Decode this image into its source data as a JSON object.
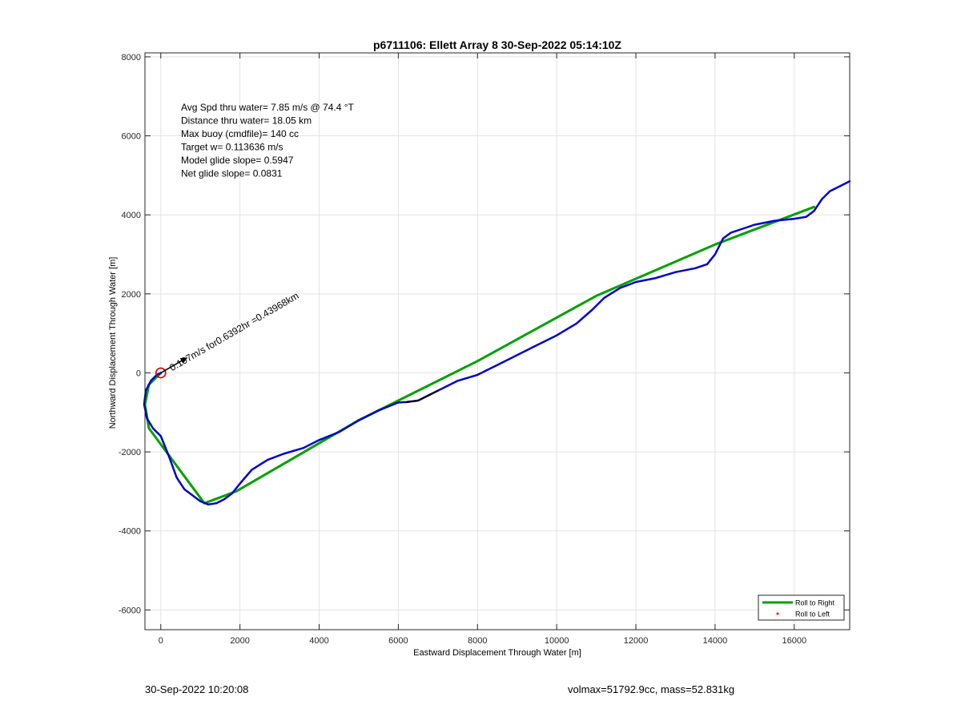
{
  "footer": {
    "timestamp": "30-Sep-2022 10:20:08",
    "volmass": "volmax=51792.9cc, mass=52.831kg"
  },
  "chart_data": {
    "type": "line",
    "title": "p6711106: Ellett Array 8 30-Sep-2022 05:14:10Z",
    "xlabel": "Eastward Displacement Through Water [m]",
    "ylabel": "Northward Displacement Through Water [m]",
    "xlim": [
      -400,
      17400
    ],
    "ylim": [
      -6500,
      8100
    ],
    "xticks": [
      0,
      2000,
      4000,
      6000,
      8000,
      10000,
      12000,
      14000,
      16000
    ],
    "xtick_labels": [
      "0",
      "2000",
      "4000",
      "6000",
      "8000",
      "10000",
      "12000",
      "14000",
      "16000"
    ],
    "yticks": [
      -6000,
      -4000,
      -2000,
      0,
      2000,
      4000,
      6000,
      8000
    ],
    "ytick_labels": [
      "-6000",
      "-4000",
      "-2000",
      "0",
      "2000",
      "4000",
      "6000",
      "8000"
    ],
    "grid": true,
    "legend_position": "bottom-right",
    "legend": [
      {
        "label": "Roll to Right",
        "color": "#00a000",
        "marker": "line"
      },
      {
        "label": "Roll to Left",
        "color": "#ff0000",
        "marker": "dot"
      }
    ],
    "info_lines": [
      "Avg Spd thru water=  7.85 m/s @  74.4 °T",
      "Distance thru water= 18.05 km",
      "Max buoy (cmdfile)= 140 cc",
      "Target w= 0.113636 m/s",
      "Model glide slope= 0.5947",
      "Net glide slope= 0.0831"
    ],
    "arrow_annotation": "0.197m/s for0.6392hr =0.43968km",
    "series": [
      {
        "color": "#00a000",
        "x": [
          0,
          -300,
          -400,
          -300,
          1100,
          1900,
          5000,
          8000,
          11000,
          14000,
          16500
        ],
        "y": [
          0,
          -300,
          -800,
          -1400,
          -3300,
          -3000,
          -1200,
          300,
          1950,
          3250,
          4200
        ]
      },
      {
        "color": "#0000cc",
        "x": [
          0,
          -100,
          -250,
          -380,
          -420,
          -350,
          -200,
          0,
          200,
          400,
          600,
          800,
          1000,
          1200,
          1400,
          1600,
          1800,
          2000,
          2300,
          2700,
          3100,
          3600,
          4000,
          4500,
          5000,
          5500,
          6000,
          6200,
          6500,
          7000,
          7500,
          8000,
          8500,
          9000,
          9500,
          10000,
          10500,
          10900,
          11200,
          11600,
          12000,
          12500,
          13000,
          13500,
          13800,
          14000,
          14200,
          14400,
          14700,
          15000,
          15500,
          16000,
          16300,
          16500,
          16700,
          16900,
          17100,
          17400
        ],
        "y": [
          0,
          -50,
          -200,
          -450,
          -800,
          -1150,
          -1400,
          -1600,
          -2100,
          -2650,
          -2950,
          -3100,
          -3250,
          -3330,
          -3300,
          -3200,
          -3050,
          -2800,
          -2450,
          -2200,
          -2050,
          -1900,
          -1700,
          -1500,
          -1200,
          -950,
          -750,
          -740,
          -700,
          -450,
          -200,
          -50,
          200,
          450,
          700,
          950,
          1250,
          1600,
          1900,
          2150,
          2300,
          2400,
          2550,
          2650,
          2750,
          3000,
          3400,
          3550,
          3650,
          3750,
          3850,
          3900,
          3950,
          4100,
          4400,
          4600,
          4700,
          4850
        ]
      },
      {
        "color": "#000000",
        "x": [
          6200,
          6500,
          6800,
          7000
        ],
        "y": [
          -740,
          -700,
          -550,
          -450
        ]
      }
    ],
    "start_marker": {
      "x": 0,
      "y": 0,
      "color": "#d00000"
    }
  }
}
